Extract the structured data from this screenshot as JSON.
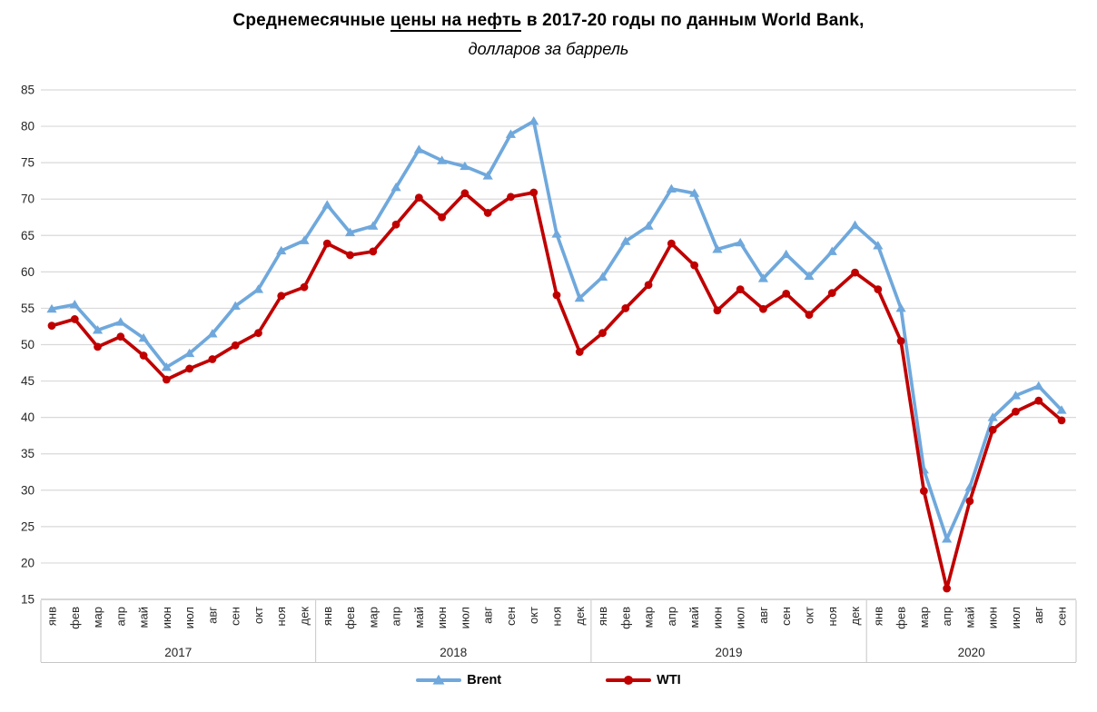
{
  "title": {
    "part1": "Среднемесячные ",
    "underlined": "цены на нефть",
    "part2": " в 2017-20 годы по данным World Bank,",
    "subtitle": "долларов за баррель"
  },
  "chart_data": {
    "type": "line",
    "title": "Среднемесячные цены на нефть в 2017-20 годы по данным World Bank, долларов за баррель",
    "grid": true,
    "legend_position": "bottom",
    "grid_color": "#D9D9D9",
    "axis_line_color": "#BFBFBF",
    "separator_color": "#C6C6C6",
    "y_axis": {
      "min": 15,
      "max": 85,
      "step": 5
    },
    "categories": [
      "янв",
      "фев",
      "мар",
      "апр",
      "май",
      "июн",
      "июл",
      "авг",
      "сен",
      "окт",
      "ноя",
      "дек",
      "янв",
      "фев",
      "мар",
      "апр",
      "май",
      "июн",
      "июл",
      "авг",
      "сен",
      "окт",
      "ноя",
      "дек",
      "янв",
      "фев",
      "мар",
      "апр",
      "май",
      "июн",
      "июл",
      "авг",
      "сен",
      "окт",
      "ноя",
      "дек",
      "янв",
      "фев",
      "мар",
      "апр",
      "май",
      "июн",
      "июл",
      "авг",
      "сен"
    ],
    "year_groups": [
      {
        "label": "2017",
        "count": 12
      },
      {
        "label": "2018",
        "count": 12
      },
      {
        "label": "2019",
        "count": 12
      },
      {
        "label": "2020",
        "count": 9
      }
    ],
    "series": [
      {
        "name": "Brent",
        "color": "#6FA8DC",
        "marker": "triangle",
        "values": [
          54.9,
          55.5,
          52.0,
          53.1,
          50.9,
          46.9,
          48.8,
          51.5,
          55.3,
          57.6,
          62.9,
          64.3,
          69.2,
          65.4,
          66.3,
          71.6,
          76.8,
          75.3,
          74.5,
          73.2,
          78.9,
          80.7,
          65.2,
          56.4,
          59.3,
          64.2,
          66.3,
          71.4,
          70.8,
          63.1,
          64.0,
          59.1,
          62.4,
          59.4,
          62.8,
          66.4,
          63.6,
          55.0,
          32.8,
          23.3,
          30.4,
          40.0,
          43.0,
          44.3,
          41.0
        ]
      },
      {
        "name": "WTI",
        "color": "#C00000",
        "marker": "circle",
        "values": [
          52.6,
          53.5,
          49.7,
          51.1,
          48.5,
          45.2,
          46.7,
          48.0,
          49.9,
          51.6,
          56.7,
          57.9,
          63.9,
          62.3,
          62.8,
          66.5,
          70.2,
          67.5,
          70.8,
          68.1,
          70.3,
          70.9,
          56.8,
          49.0,
          51.6,
          55.0,
          58.2,
          63.9,
          60.9,
          54.7,
          57.6,
          54.9,
          57.0,
          54.1,
          57.1,
          59.9,
          57.6,
          50.5,
          29.9,
          16.5,
          28.5,
          38.3,
          40.8,
          42.3,
          39.6
        ]
      }
    ]
  }
}
